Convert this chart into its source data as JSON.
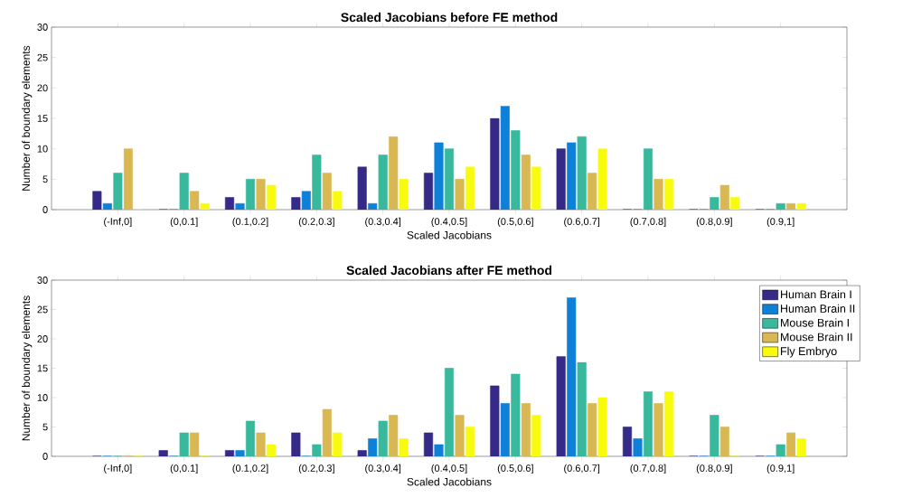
{
  "chart_data": [
    {
      "type": "bar",
      "title": "Scaled Jacobians before FE method",
      "xlabel": "Scaled Jacobians",
      "ylabel": "Number of boundary elements",
      "categories": [
        "(-Inf,0]",
        "(0,0.1]",
        "(0.1,0.2]",
        "(0.2,0.3]",
        "(0.3,0.4]",
        "(0.4,0.5]",
        "(0.5,0.6]",
        "(0.6,0.7]",
        "(0.7,0.8]",
        "(0.8,0.9]",
        "(0.9,1]"
      ],
      "series": [
        {
          "color": "#352a87",
          "values": [
            3,
            0,
            2,
            2,
            7,
            6,
            15,
            10,
            0,
            0,
            0
          ]
        },
        {
          "color": "#0f80d8",
          "values": [
            1,
            0,
            1,
            3,
            1,
            11,
            17,
            11,
            0,
            0,
            0
          ]
        },
        {
          "color": "#38b99e",
          "values": [
            6,
            6,
            5,
            9,
            9,
            10,
            13,
            12,
            10,
            2,
            1
          ]
        },
        {
          "color": "#d9b853",
          "values": [
            10,
            3,
            5,
            6,
            12,
            5,
            9,
            6,
            5,
            4,
            1
          ]
        },
        {
          "color": "#f9fb0e",
          "values": [
            0,
            1,
            4,
            3,
            5,
            7,
            7,
            10,
            5,
            2,
            1
          ]
        }
      ],
      "ylim": [
        0,
        30
      ],
      "yticks": [
        0,
        5,
        10,
        15,
        20,
        25,
        30
      ]
    },
    {
      "type": "bar",
      "title": "Scaled Jacobians after FE method",
      "xlabel": "Scaled Jacobians",
      "ylabel": "Number of boundary elements",
      "categories": [
        "(-Inf,0]",
        "(0,0.1]",
        "(0.1,0.2]",
        "(0.2,0.3]",
        "(0.3,0.4]",
        "(0.4,0.5]",
        "(0.5,0.6]",
        "(0.6,0.7]",
        "(0.7,0.8]",
        "(0.8,0.9]",
        "(0.9,1]"
      ],
      "series": [
        {
          "name": "Human Brain I",
          "color": "#352a87",
          "values": [
            0,
            1,
            1,
            4,
            1,
            4,
            12,
            17,
            5,
            0,
            0
          ]
        },
        {
          "name": "Human Brain II",
          "color": "#0f80d8",
          "values": [
            0,
            0,
            1,
            0,
            3,
            2,
            9,
            27,
            3,
            0,
            0
          ]
        },
        {
          "name": "Mouse Brain I",
          "color": "#38b99e",
          "values": [
            0,
            4,
            6,
            2,
            6,
            15,
            14,
            16,
            11,
            7,
            2
          ]
        },
        {
          "name": "Mouse Brain II",
          "color": "#d9b853",
          "values": [
            0,
            4,
            4,
            8,
            7,
            7,
            9,
            9,
            9,
            5,
            4
          ]
        },
        {
          "name": "Fly Embryo",
          "color": "#f9fb0e",
          "values": [
            0,
            0,
            2,
            4,
            3,
            5,
            7,
            10,
            11,
            0,
            3
          ]
        }
      ],
      "ylim": [
        0,
        30
      ],
      "yticks": [
        0,
        5,
        10,
        15,
        20,
        25,
        30
      ],
      "legend": "top right"
    }
  ]
}
